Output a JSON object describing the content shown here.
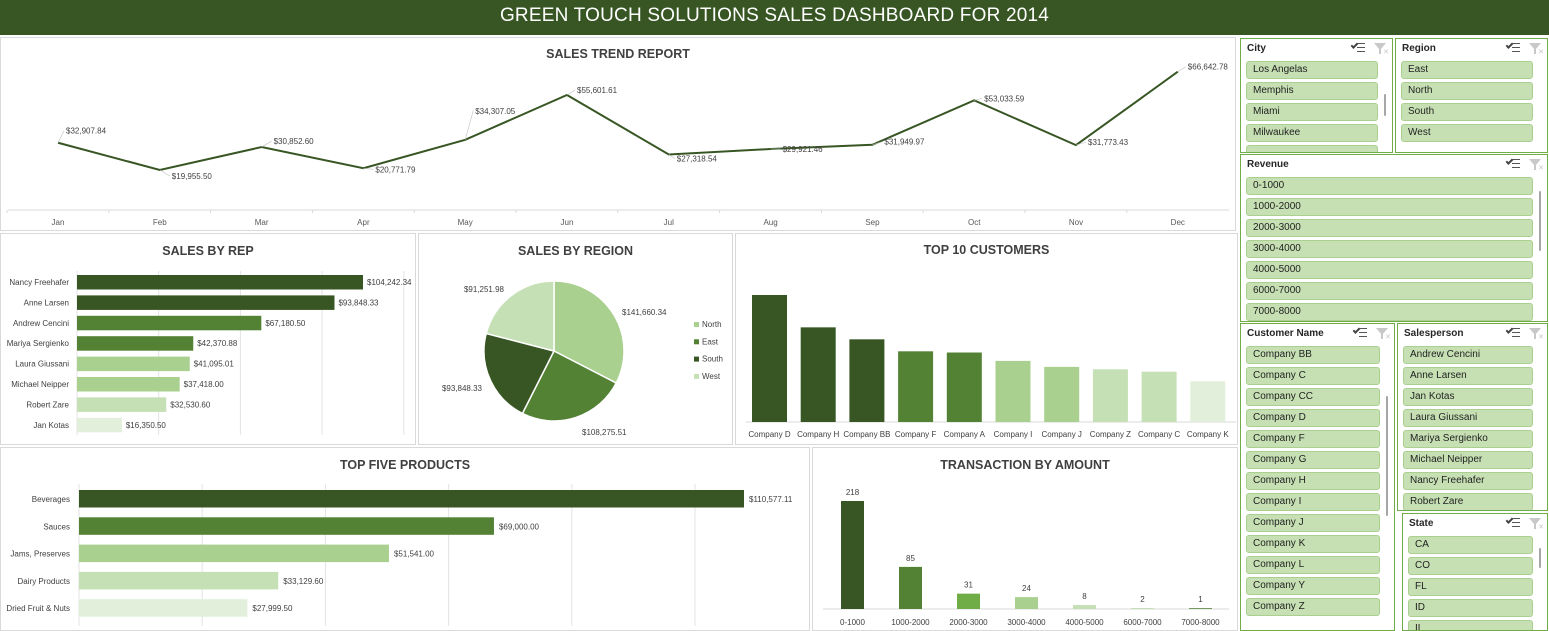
{
  "dashboard": {
    "title": "GREEN TOUCH SOLUTIONS SALES DASHBOARD FOR 2014"
  },
  "colors": {
    "banner": "#375623",
    "dark": "#375623",
    "mid": "#548235",
    "light": "#a9d08e",
    "lighter": "#c5e0b4",
    "lightest": "#e2efda",
    "line": "#375623",
    "slicer_item": "#c6e0b4"
  },
  "chart_data": [
    {
      "id": "sales_trend",
      "type": "line",
      "title": "SALES TREND REPORT",
      "categories": [
        "Jan",
        "Feb",
        "Mar",
        "Apr",
        "May",
        "Jun",
        "Jul",
        "Aug",
        "Sep",
        "Oct",
        "Nov",
        "Dec"
      ],
      "values": [
        32907.84,
        19955.5,
        30852.6,
        20771.79,
        34307.05,
        55601.61,
        27318.54,
        29921.46,
        31949.97,
        53033.59,
        31773.43,
        66642.78
      ],
      "labels": [
        "$32,907.84",
        "$19,955.50",
        "$30,852.60",
        "$20,771.79",
        "$34,307.05",
        "$55,601.61",
        "$27,318.54",
        "$29,921.46",
        "$31,949.97",
        "$53,033.59",
        "$31,773.43",
        "$66,642.78"
      ]
    },
    {
      "id": "sales_by_rep",
      "type": "bar",
      "orientation": "horizontal",
      "title": "SALES BY REP",
      "categories": [
        "Nancy Freehafer",
        "Anne Larsen",
        "Andrew Cencini",
        "Mariya Sergienko",
        "Laura Giussani",
        "Michael Neipper",
        "Robert Zare",
        "Jan Kotas"
      ],
      "values": [
        104242.34,
        93848.33,
        67180.5,
        42370.88,
        41095.01,
        37418.0,
        32530.6,
        16350.5
      ],
      "labels": [
        "$104,242.34",
        "$93,848.33",
        "$67,180.50",
        "$42,370.88",
        "$41,095.01",
        "$37,418.00",
        "$32,530.60",
        "$16,350.50"
      ],
      "colors": [
        "#375623",
        "#375623",
        "#548235",
        "#548235",
        "#a9d08e",
        "#a9d08e",
        "#c5e0b4",
        "#e2efda"
      ]
    },
    {
      "id": "sales_by_region",
      "type": "pie",
      "title": "SALES BY REGION",
      "categories": [
        "North",
        "East",
        "South",
        "West"
      ],
      "values": [
        141660.34,
        108275.51,
        93848.33,
        91251.98
      ],
      "labels": [
        "$141,660.34",
        "$108,275.51",
        "$93,848.33",
        "$91,251.98"
      ],
      "colors": [
        "#a9d08e",
        "#548235",
        "#375623",
        "#c5e0b4"
      ],
      "legend": [
        "North",
        "East",
        "South",
        "West"
      ],
      "legend_position": "right"
    },
    {
      "id": "top_10_customers",
      "type": "bar",
      "title": "TOP 10 CUSTOMERS",
      "categories": [
        "Company D",
        "Company H",
        "Company BB",
        "Company F",
        "Company A",
        "Company I",
        "Company J",
        "Company Z",
        "Company C",
        "Company K"
      ],
      "values": [
        10.6,
        7.9,
        6.9,
        5.9,
        5.8,
        5.1,
        4.6,
        4.4,
        4.2,
        3.4
      ],
      "colors": [
        "#375623",
        "#375623",
        "#375623",
        "#548235",
        "#548235",
        "#a9d08e",
        "#a9d08e",
        "#c5e0b4",
        "#c5e0b4",
        "#e2efda"
      ]
    },
    {
      "id": "top_five_products",
      "type": "bar",
      "orientation": "horizontal",
      "title": "TOP FIVE PRODUCTS",
      "categories": [
        "Beverages",
        "Sauces",
        "Jams, Preserves",
        "Dairy Products",
        "Dried Fruit & Nuts"
      ],
      "values": [
        110577.11,
        69000.0,
        51541.0,
        33129.6,
        27999.5
      ],
      "labels": [
        "$110,577.11",
        "$69,000.00",
        "$51,541.00",
        "$33,129.60",
        "$27,999.50"
      ],
      "colors": [
        "#375623",
        "#548235",
        "#a9d08e",
        "#c5e0b4",
        "#e2efda"
      ]
    },
    {
      "id": "transaction_by_amount",
      "type": "bar",
      "title": "TRANSACTION BY AMOUNT",
      "categories": [
        "0-1000",
        "1000-2000",
        "2000-3000",
        "3000-4000",
        "4000-5000",
        "6000-7000",
        "7000-8000"
      ],
      "values": [
        218,
        85,
        31,
        24,
        8,
        2,
        1
      ],
      "labels": [
        "218",
        "85",
        "31",
        "24",
        "8",
        "2",
        "1"
      ],
      "colors": [
        "#375623",
        "#548235",
        "#70ad47",
        "#a9d08e",
        "#c5e0b4",
        "#c5e0b4",
        "#548235"
      ]
    }
  ],
  "slicers": {
    "city": {
      "title": "City",
      "items": [
        "Los Angelas",
        "Memphis",
        "Miami",
        "Milwaukee",
        ""
      ]
    },
    "region": {
      "title": "Region",
      "items": [
        "East",
        "North",
        "South",
        "West"
      ]
    },
    "revenue": {
      "title": "Revenue",
      "items": [
        "0-1000",
        "1000-2000",
        "2000-3000",
        "3000-4000",
        "4000-5000",
        "6000-7000",
        "7000-8000"
      ]
    },
    "customer": {
      "title": "Customer Name",
      "items": [
        "Company BB",
        "Company C",
        "Company CC",
        "Company D",
        "Company F",
        "Company G",
        "Company H",
        "Company I",
        "Company J",
        "Company K",
        "Company L",
        "Company Y",
        "Company Z"
      ]
    },
    "salesperson": {
      "title": "Salesperson",
      "items": [
        "Andrew Cencini",
        "Anne Larsen",
        "Jan Kotas",
        "Laura Giussani",
        "Mariya Sergienko",
        "Michael Neipper",
        "Nancy Freehafer",
        "Robert Zare"
      ]
    },
    "state": {
      "title": "State",
      "items": [
        "CA",
        "CO",
        "FL",
        "ID",
        "IL"
      ]
    }
  }
}
